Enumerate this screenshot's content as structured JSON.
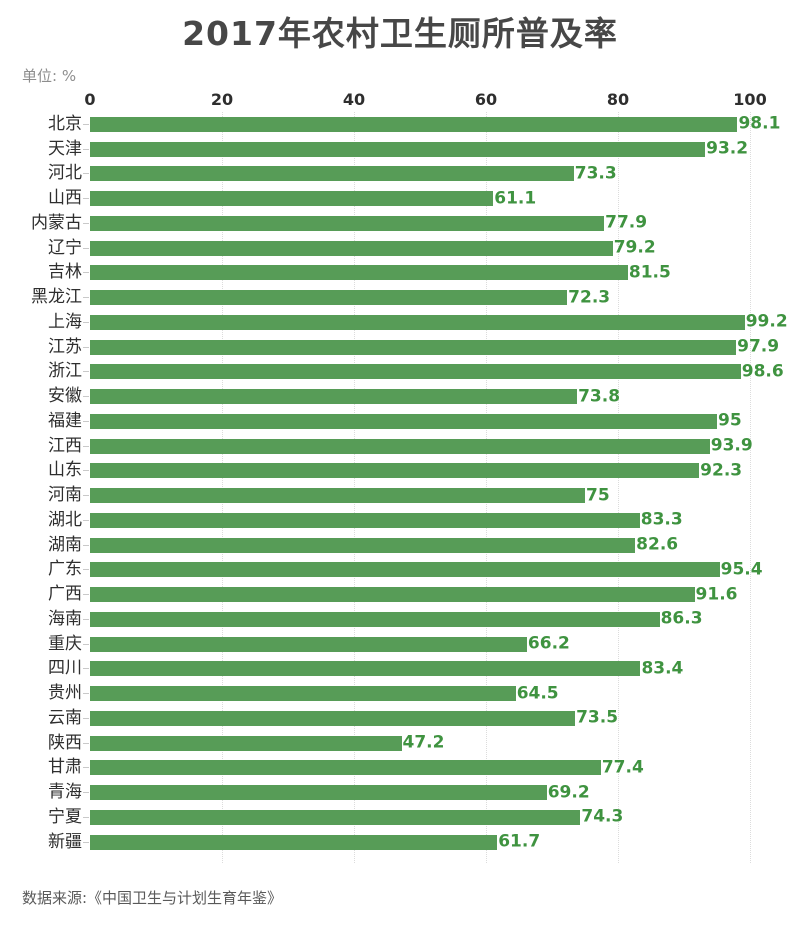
{
  "page": {
    "title": "2017年农村卫生厕所普及率",
    "unit_label": "单位: %",
    "source": "数据来源:《中国卫生与计划生育年鉴》"
  },
  "colors": {
    "bar_green": "#579c57",
    "value_label_green": "#3f9340",
    "title_gray": "#474747",
    "axis_text": "#2e2e2e",
    "unit_gray": "#8e8e8e",
    "source_gray": "#595959",
    "gridline_gray": "#dcdcdc",
    "tick_mark_gray": "#c9c9c9",
    "background": "#ffffff"
  },
  "chart_data": {
    "type": "bar",
    "orientation": "horizontal",
    "title": "2017年农村卫生厕所普及率",
    "unit": "%",
    "xlabel": "",
    "ylabel": "",
    "xlim": [
      0,
      100
    ],
    "xticks": [
      0,
      20,
      40,
      60,
      80,
      100
    ],
    "grid": "vertical-dotted",
    "legend": "none",
    "categories": [
      "北京",
      "天津",
      "河北",
      "山西",
      "内蒙古",
      "辽宁",
      "吉林",
      "黑龙江",
      "上海",
      "江苏",
      "浙江",
      "安徽",
      "福建",
      "江西",
      "山东",
      "河南",
      "湖北",
      "湖南",
      "广东",
      "广西",
      "海南",
      "重庆",
      "四川",
      "贵州",
      "云南",
      "陕西",
      "甘肃",
      "青海",
      "宁夏",
      "新疆"
    ],
    "values": [
      98.1,
      93.2,
      73.3,
      61.1,
      77.9,
      79.2,
      81.5,
      72.3,
      99.2,
      97.9,
      98.6,
      73.8,
      95,
      93.9,
      92.3,
      75,
      83.3,
      82.6,
      95.4,
      91.6,
      86.3,
      66.2,
      83.4,
      64.5,
      73.5,
      47.2,
      77.4,
      69.2,
      74.3,
      61.7
    ],
    "source": "数据来源:《中国卫生与计划生育年鉴》"
  }
}
